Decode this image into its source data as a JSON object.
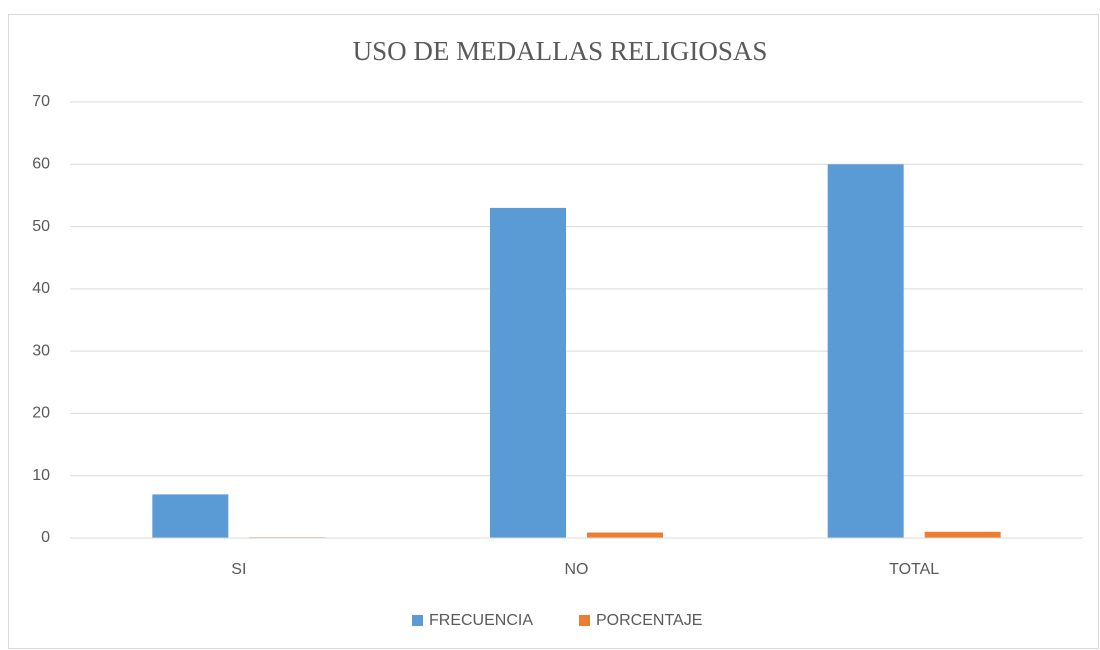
{
  "chart_data": {
    "type": "bar",
    "title": "USO DE MEDALLAS RELIGIOSAS",
    "categories": [
      "SI",
      "NO",
      "TOTAL"
    ],
    "series": [
      {
        "name": "FRECUENCIA",
        "color": "#5b9bd5",
        "values": [
          7,
          53,
          60
        ]
      },
      {
        "name": "PORCENTAJE",
        "color": "#ed7d31",
        "values": [
          0.12,
          0.88,
          1
        ]
      }
    ],
    "ylim": [
      0,
      70
    ],
    "yticks": [
      0,
      10,
      20,
      30,
      40,
      50,
      60,
      70
    ],
    "grid": true,
    "legend": "bottom"
  }
}
